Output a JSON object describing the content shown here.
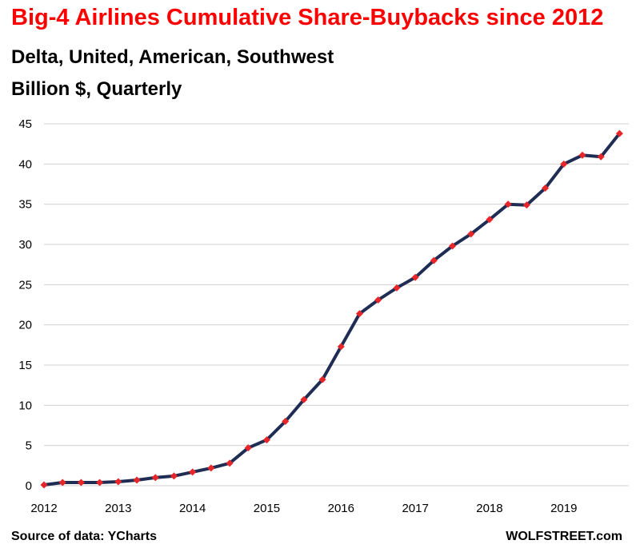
{
  "chart_data": {
    "type": "line",
    "title": "Big-4 Airlines Cumulative Share-Buybacks  since 2012",
    "subtitle_lines": [
      "Delta, United, American, Southwest",
      "Billion $, Quarterly"
    ],
    "x_tick_labels": [
      "2012",
      "2013",
      "2014",
      "2015",
      "2016",
      "2017",
      "2018",
      "2019"
    ],
    "y_tick_labels": [
      "0",
      "5",
      "10",
      "15",
      "20",
      "25",
      "30",
      "35",
      "40",
      "45"
    ],
    "ylim": [
      0,
      45
    ],
    "xlim": [
      2012,
      2019.875
    ],
    "grid": "horizontal",
    "colors": {
      "title": "#ff0000",
      "line": "#1f2d55",
      "marker": "#e8262a",
      "grid": "#d0d0d0"
    },
    "series": [
      {
        "x": [
          2012,
          2012.25,
          2012.5,
          2012.75,
          2013,
          2013.25,
          2013.5,
          2013.75,
          2014,
          2014.25,
          2014.5,
          2014.75,
          2015,
          2015.25,
          2015.5,
          2015.75,
          2016,
          2016.25,
          2016.5,
          2016.75,
          2017,
          2017.25,
          2017.5,
          2017.75,
          2018,
          2018.25,
          2018.5,
          2018.75,
          2019,
          2019.25,
          2019.5,
          2019.75
        ],
        "values": [
          0.1,
          0.4,
          0.4,
          0.4,
          0.5,
          0.7,
          1.0,
          1.2,
          1.7,
          2.2,
          2.8,
          4.7,
          5.7,
          8.0,
          10.7,
          13.2,
          17.3,
          21.4,
          23.1,
          24.6,
          25.9,
          28.0,
          29.8,
          31.3,
          33.1,
          35.0,
          34.9,
          37.0,
          40.0,
          41.1,
          40.9,
          43.8
        ]
      }
    ]
  },
  "footer": {
    "source": "Source of data: YCharts",
    "brand": "WOLFSTREET.com"
  }
}
